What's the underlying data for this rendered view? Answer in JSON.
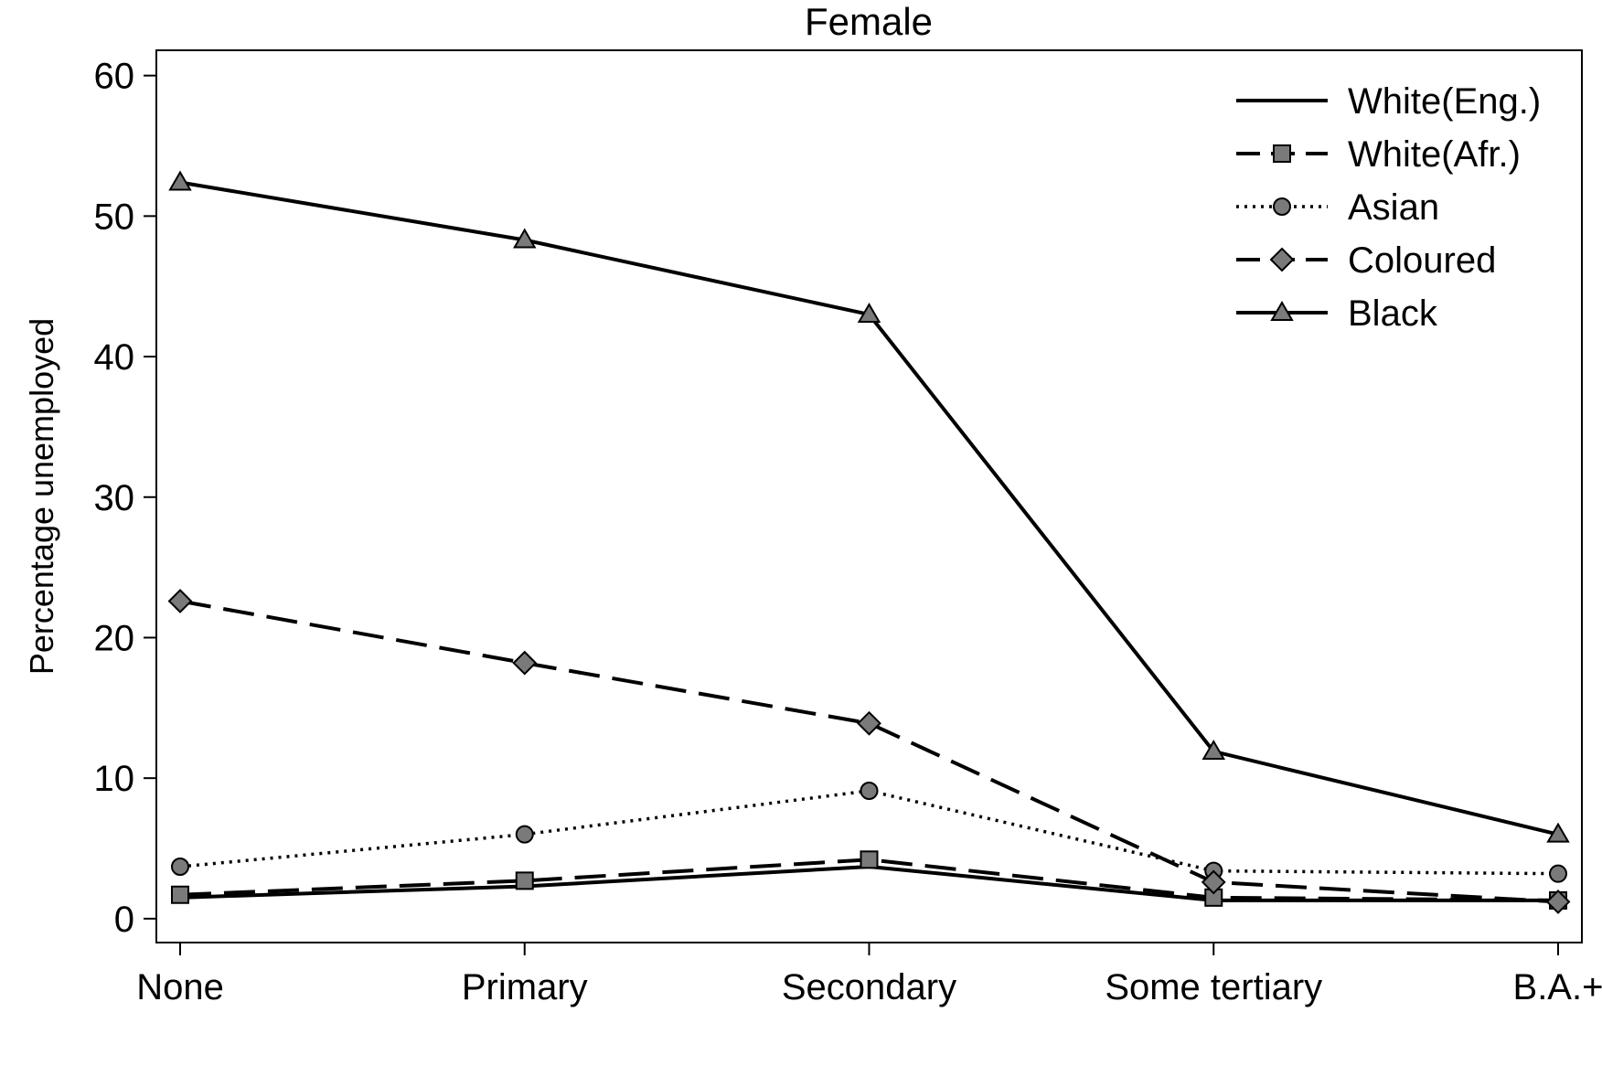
{
  "chart_data": {
    "type": "line",
    "title": "Female",
    "xlabel": "",
    "ylabel": "Percentage unemployed",
    "categories": [
      "None",
      "Primary",
      "Secondary",
      "Some tertiary",
      "B.A.+"
    ],
    "yticks": [
      "0",
      "10",
      "20",
      "30",
      "40",
      "50",
      "60"
    ],
    "ylim": [
      -1.7,
      61.8
    ],
    "grid": false,
    "legend_position": "top-right",
    "series": [
      {
        "name": "White(Eng.)",
        "values": [
          1.5,
          2.3,
          3.7,
          1.3,
          1.3
        ],
        "line": "solid",
        "marker": "none"
      },
      {
        "name": "White(Afr.)",
        "values": [
          1.7,
          2.7,
          4.2,
          1.5,
          1.3
        ],
        "line": "longdash",
        "marker": "square"
      },
      {
        "name": "Asian",
        "values": [
          3.7,
          6.0,
          9.1,
          3.4,
          3.2
        ],
        "line": "dotted",
        "marker": "circle"
      },
      {
        "name": "Coloured",
        "values": [
          22.6,
          18.2,
          13.9,
          2.6,
          1.2
        ],
        "line": "longdash",
        "marker": "diamond"
      },
      {
        "name": "Black",
        "values": [
          52.4,
          48.3,
          43.0,
          11.9,
          6.0
        ],
        "line": "solid",
        "marker": "triangle"
      }
    ]
  }
}
